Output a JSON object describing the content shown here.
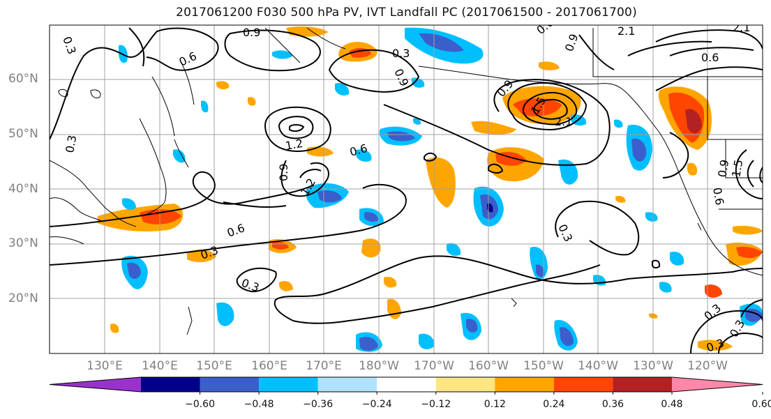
{
  "title": "2017061200 F030 500 hPa PV, IVT Landfall PC (2017061500 - 2017061700)",
  "lat_labels": [
    "60°N",
    "50°N",
    "40°N",
    "30°N",
    "20°N"
  ],
  "lon_labels": [
    "130°E",
    "140°E",
    "150°E",
    "160°E",
    "170°E",
    "180°W",
    "170°W",
    "160°W",
    "150°W",
    "140°W",
    "130°W",
    "120°W"
  ],
  "colorbar": {
    "tick_labels": [
      "−0.60",
      "−0.48",
      "−0.36",
      "−0.24",
      "−0.12",
      "0.12",
      "0.24",
      "0.36",
      "0.48",
      "0.60"
    ],
    "colors": [
      "#9932cc",
      "#00008b",
      "#3a5fcd",
      "#00bfff",
      "#b0e2ff",
      "#ffffff",
      "#ffe680",
      "#ffa500",
      "#ff4500",
      "#b22222",
      "#ff88aa"
    ]
  },
  "contour_labels": [
    "0.3",
    "0.6",
    "0.9",
    "1.2",
    "1.5",
    "2.1"
  ],
  "map_extent": {
    "lon_min": "120°E",
    "lon_max": "110°W",
    "lat_min": "10°N",
    "lat_max": "70°N"
  }
}
